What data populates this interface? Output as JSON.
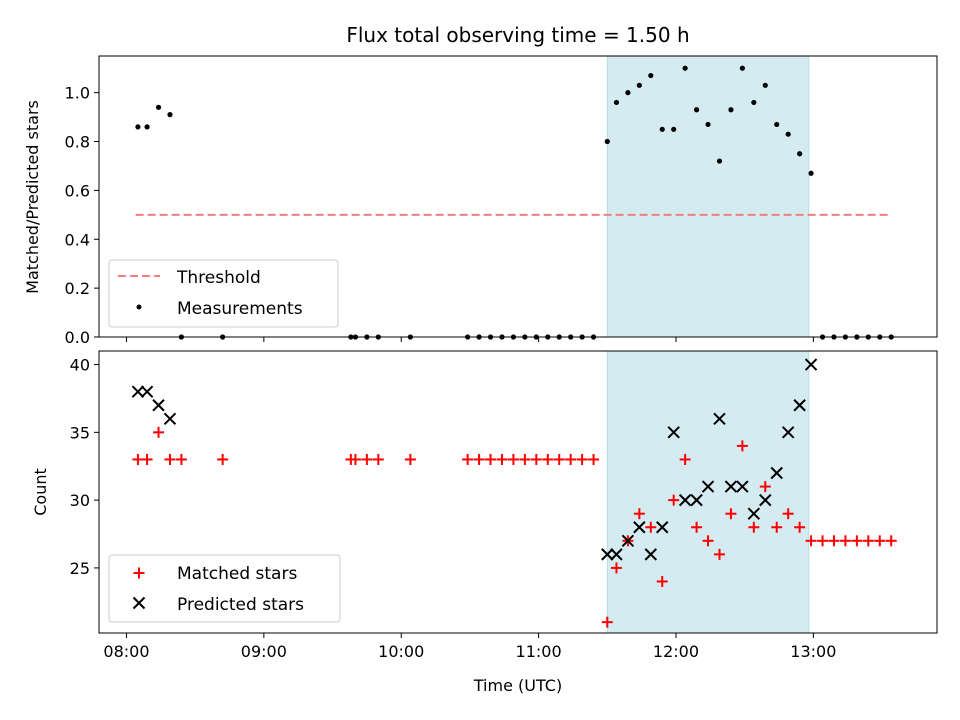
{
  "colors": {
    "shade": "#d4ebf1",
    "shade_edge": "#b6dde6",
    "threshold": "#f08080",
    "measurement": "#000000",
    "matched": "#ff0000",
    "predicted": "#000000"
  },
  "chart_data": [
    {
      "type": "scatter",
      "title": "Flux total observing time = 1.50 h",
      "ylabel": "Matched/Predicted stars",
      "xlabel": "",
      "xlim_hours": [
        7.8,
        13.9
      ],
      "ylim": [
        0,
        1.15
      ],
      "yticks": [
        0.0,
        0.2,
        0.4,
        0.6,
        0.8,
        1.0
      ],
      "ytick_labels": [
        "0.0",
        "0.2",
        "0.4",
        "0.6",
        "0.8",
        "1.0"
      ],
      "xticks_hours": [
        8,
        9,
        10,
        11,
        12,
        13
      ],
      "shaded_span": [
        "11:30",
        "12:58"
      ],
      "legend": {
        "placement": "lower-left",
        "entries": [
          "Threshold",
          "Measurements"
        ]
      },
      "threshold": {
        "name": "Threshold",
        "value": 0.5,
        "x_range": [
          "08:04",
          "13:34"
        ],
        "style": "dashed"
      },
      "series": [
        {
          "name": "Measurements",
          "marker": "dot",
          "points": [
            [
              "08:05",
              0.86
            ],
            [
              "08:09",
              0.86
            ],
            [
              "08:14",
              0.94
            ],
            [
              "08:19",
              0.91
            ],
            [
              "08:24",
              0.0
            ],
            [
              "08:42",
              0.0
            ],
            [
              "09:38",
              0.0
            ],
            [
              "09:40",
              0.0
            ],
            [
              "09:45",
              0.0
            ],
            [
              "09:50",
              0.0
            ],
            [
              "10:04",
              0.0
            ],
            [
              "10:29",
              0.0
            ],
            [
              "10:34",
              0.0
            ],
            [
              "10:39",
              0.0
            ],
            [
              "10:44",
              0.0
            ],
            [
              "10:49",
              0.0
            ],
            [
              "10:54",
              0.0
            ],
            [
              "10:59",
              0.0
            ],
            [
              "11:04",
              0.0
            ],
            [
              "11:09",
              0.0
            ],
            [
              "11:14",
              0.0
            ],
            [
              "11:19",
              0.0
            ],
            [
              "11:24",
              0.0
            ],
            [
              "11:30",
              0.8
            ],
            [
              "11:34",
              0.96
            ],
            [
              "11:39",
              1.0
            ],
            [
              "11:44",
              1.03
            ],
            [
              "11:49",
              1.07
            ],
            [
              "11:54",
              0.85
            ],
            [
              "11:59",
              0.85
            ],
            [
              "12:04",
              1.1
            ],
            [
              "12:09",
              0.93
            ],
            [
              "12:14",
              0.87
            ],
            [
              "12:19",
              0.72
            ],
            [
              "12:24",
              0.93
            ],
            [
              "12:29",
              1.1
            ],
            [
              "12:34",
              0.96
            ],
            [
              "12:39",
              1.03
            ],
            [
              "12:44",
              0.87
            ],
            [
              "12:49",
              0.83
            ],
            [
              "12:54",
              0.75
            ],
            [
              "12:59",
              0.67
            ],
            [
              "13:04",
              0.0
            ],
            [
              "13:09",
              0.0
            ],
            [
              "13:14",
              0.0
            ],
            [
              "13:19",
              0.0
            ],
            [
              "13:24",
              0.0
            ],
            [
              "13:29",
              0.0
            ],
            [
              "13:34",
              0.0
            ]
          ]
        }
      ]
    },
    {
      "type": "scatter",
      "title": "",
      "ylabel": "Count",
      "xlabel": "Time (UTC)",
      "xlim_hours": [
        7.8,
        13.9
      ],
      "ylim": [
        20.2,
        41.0
      ],
      "yticks": [
        25,
        30,
        35,
        40
      ],
      "ytick_labels": [
        "25",
        "30",
        "35",
        "40"
      ],
      "xticks_hours": [
        8,
        9,
        10,
        11,
        12,
        13
      ],
      "xtick_labels": [
        "08:00",
        "09:00",
        "10:00",
        "11:00",
        "12:00",
        "13:00"
      ],
      "shaded_span": [
        "11:30",
        "12:58"
      ],
      "legend": {
        "placement": "lower-left",
        "entries": [
          "Matched stars",
          "Predicted stars"
        ]
      },
      "series": [
        {
          "name": "Matched stars",
          "marker": "plus",
          "points": [
            [
              "08:05",
              33
            ],
            [
              "08:09",
              33
            ],
            [
              "08:14",
              35
            ],
            [
              "08:19",
              33
            ],
            [
              "08:24",
              33
            ],
            [
              "08:42",
              33
            ],
            [
              "09:38",
              33
            ],
            [
              "09:40",
              33
            ],
            [
              "09:45",
              33
            ],
            [
              "09:50",
              33
            ],
            [
              "10:04",
              33
            ],
            [
              "10:29",
              33
            ],
            [
              "10:34",
              33
            ],
            [
              "10:39",
              33
            ],
            [
              "10:44",
              33
            ],
            [
              "10:49",
              33
            ],
            [
              "10:54",
              33
            ],
            [
              "10:59",
              33
            ],
            [
              "11:04",
              33
            ],
            [
              "11:09",
              33
            ],
            [
              "11:14",
              33
            ],
            [
              "11:19",
              33
            ],
            [
              "11:24",
              33
            ],
            [
              "11:30",
              21
            ],
            [
              "11:34",
              25
            ],
            [
              "11:39",
              27
            ],
            [
              "11:44",
              29
            ],
            [
              "11:49",
              28
            ],
            [
              "11:54",
              24
            ],
            [
              "11:59",
              30
            ],
            [
              "12:04",
              33
            ],
            [
              "12:09",
              28
            ],
            [
              "12:14",
              27
            ],
            [
              "12:19",
              26
            ],
            [
              "12:24",
              29
            ],
            [
              "12:29",
              34
            ],
            [
              "12:34",
              28
            ],
            [
              "12:39",
              31
            ],
            [
              "12:44",
              28
            ],
            [
              "12:49",
              29
            ],
            [
              "12:54",
              28
            ],
            [
              "12:59",
              27
            ],
            [
              "13:04",
              27
            ],
            [
              "13:09",
              27
            ],
            [
              "13:14",
              27
            ],
            [
              "13:19",
              27
            ],
            [
              "13:24",
              27
            ],
            [
              "13:29",
              27
            ],
            [
              "13:34",
              27
            ]
          ]
        },
        {
          "name": "Predicted stars",
          "marker": "x",
          "points": [
            [
              "08:05",
              38
            ],
            [
              "08:09",
              38
            ],
            [
              "08:14",
              37
            ],
            [
              "08:19",
              36
            ],
            [
              "11:30",
              26
            ],
            [
              "11:34",
              26
            ],
            [
              "11:39",
              27
            ],
            [
              "11:44",
              28
            ],
            [
              "11:49",
              26
            ],
            [
              "11:54",
              28
            ],
            [
              "11:59",
              35
            ],
            [
              "12:04",
              30
            ],
            [
              "12:09",
              30
            ],
            [
              "12:14",
              31
            ],
            [
              "12:19",
              36
            ],
            [
              "12:24",
              31
            ],
            [
              "12:29",
              31
            ],
            [
              "12:34",
              29
            ],
            [
              "12:39",
              30
            ],
            [
              "12:44",
              32
            ],
            [
              "12:49",
              35
            ],
            [
              "12:54",
              37
            ],
            [
              "12:59",
              40
            ]
          ]
        }
      ]
    }
  ]
}
